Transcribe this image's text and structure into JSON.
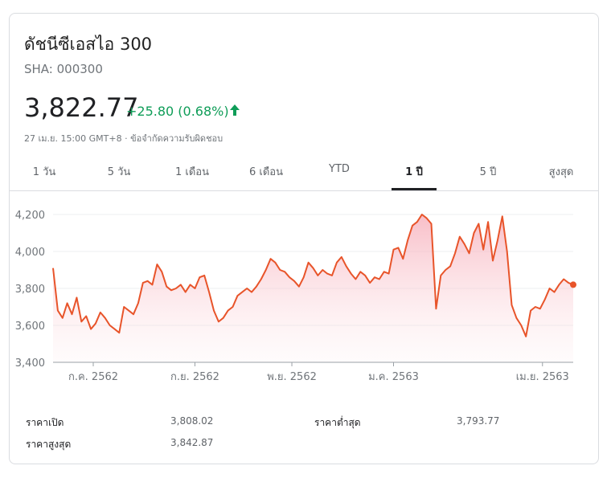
{
  "header": {
    "title": "ดัชนีซีเอสไอ 300",
    "ticker": "SHA: 000300",
    "price": "3,822.77",
    "change": "+25.80 (0.68%)",
    "updated": "27 เม.ย. 15:00 GMT+8 · ข้อจำกัดความรับผิดชอบ",
    "change_color": "#0f9d58",
    "arrow_icon": "arrow-up-icon"
  },
  "tabs": [
    {
      "label": "1 วัน",
      "active": false
    },
    {
      "label": "5 วัน",
      "active": false
    },
    {
      "label": "1 เดือน",
      "active": false
    },
    {
      "label": "6 เดือน",
      "active": false
    },
    {
      "label": "YTD",
      "active": false
    },
    {
      "label": "1 ปี",
      "active": true
    },
    {
      "label": "5 ปี",
      "active": false
    },
    {
      "label": "สูงสุด",
      "active": false
    }
  ],
  "stats": {
    "open_label": "ราคาเปิด",
    "open_value": "3,808.02",
    "low_label": "ราคาต่ำสุด",
    "low_value": "3,793.77",
    "high_label": "ราคาสูงสุด",
    "high_value": "3,842.87"
  },
  "chart_data": {
    "type": "area",
    "line_color": "#e8542a",
    "fill_color": "#f8c7cf",
    "grid": true,
    "ylim": [
      3400,
      4200
    ],
    "yticks": [
      3400,
      3600,
      3800,
      4000,
      4200
    ],
    "ytick_labels": [
      "3,400",
      "3,600",
      "3,800",
      "4,000",
      "4,200"
    ],
    "xtick_labels": [
      "ก.ค. 2562",
      "ก.ย. 2562",
      "พ.ย. 2562",
      "ม.ค. 2563",
      "เม.ย. 2563"
    ],
    "xtick_positions": [
      17,
      60,
      101,
      144,
      207
    ],
    "x": [
      0,
      2,
      4,
      6,
      8,
      10,
      12,
      14,
      16,
      18,
      20,
      22,
      24,
      26,
      28,
      30,
      32,
      34,
      36,
      38,
      40,
      42,
      44,
      46,
      48,
      50,
      52,
      54,
      56,
      58,
      60,
      62,
      64,
      66,
      68,
      70,
      72,
      74,
      76,
      78,
      80,
      82,
      84,
      86,
      88,
      90,
      92,
      94,
      96,
      98,
      100,
      102,
      104,
      106,
      108,
      110,
      112,
      114,
      116,
      118,
      120,
      122,
      124,
      126,
      128,
      130,
      132,
      134,
      136,
      138,
      140,
      142,
      144,
      146,
      148,
      150,
      152,
      154,
      156,
      158,
      160,
      162,
      164,
      166,
      168,
      170,
      172,
      174,
      176,
      178,
      180,
      182,
      184,
      186,
      188,
      190,
      192,
      194,
      196,
      198,
      200,
      202,
      204,
      206,
      208,
      210,
      212,
      214,
      216,
      218,
      220
    ],
    "values": [
      3910,
      3680,
      3640,
      3720,
      3660,
      3750,
      3620,
      3650,
      3580,
      3610,
      3670,
      3640,
      3600,
      3580,
      3560,
      3700,
      3680,
      3660,
      3720,
      3830,
      3840,
      3820,
      3930,
      3890,
      3810,
      3790,
      3800,
      3820,
      3780,
      3820,
      3800,
      3860,
      3870,
      3780,
      3680,
      3620,
      3640,
      3680,
      3700,
      3760,
      3780,
      3800,
      3780,
      3810,
      3850,
      3900,
      3960,
      3940,
      3900,
      3890,
      3860,
      3840,
      3810,
      3860,
      3940,
      3910,
      3870,
      3900,
      3880,
      3870,
      3940,
      3970,
      3920,
      3880,
      3850,
      3890,
      3870,
      3830,
      3860,
      3850,
      3890,
      3880,
      4010,
      4020,
      3960,
      4060,
      4140,
      4160,
      4200,
      4180,
      4150,
      3690,
      3870,
      3900,
      3920,
      3990,
      4080,
      4040,
      3990,
      4100,
      4150,
      4010,
      4160,
      3950,
      4060,
      4190,
      4000,
      3710,
      3640,
      3600,
      3540,
      3680,
      3700,
      3690,
      3740,
      3800,
      3780,
      3820,
      3850,
      3830,
      3820
    ]
  }
}
